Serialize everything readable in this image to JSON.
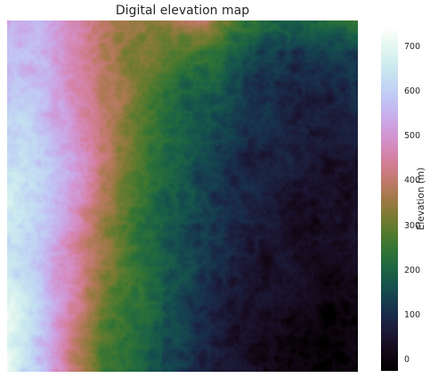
{
  "chart_data": {
    "type": "heatmap",
    "title": "Digital elevation map",
    "colormap": "cubehelix",
    "colorbar": {
      "label": "Elevation (m)",
      "min": -25,
      "max": 745,
      "ticks": [
        0,
        100,
        200,
        300,
        400,
        500,
        600,
        700
      ]
    },
    "value_field": {
      "grid": [
        [
          560,
          540,
          470,
          390,
          330,
          330,
          410,
          300,
          230,
          180,
          200,
          250
        ],
        [
          570,
          550,
          480,
          400,
          330,
          280,
          260,
          200,
          150,
          120,
          110,
          130
        ],
        [
          580,
          560,
          480,
          400,
          320,
          250,
          190,
          150,
          110,
          90,
          80,
          95
        ],
        [
          600,
          580,
          500,
          410,
          310,
          230,
          170,
          130,
          95,
          75,
          65,
          75
        ],
        [
          620,
          590,
          510,
          410,
          300,
          210,
          150,
          110,
          80,
          60,
          55,
          60
        ],
        [
          650,
          600,
          520,
          400,
          280,
          190,
          140,
          100,
          70,
          50,
          40,
          45
        ],
        [
          660,
          600,
          500,
          380,
          260,
          180,
          130,
          90,
          60,
          40,
          30,
          35
        ],
        [
          650,
          580,
          470,
          360,
          250,
          170,
          120,
          80,
          50,
          30,
          20,
          25
        ],
        [
          660,
          590,
          460,
          330,
          240,
          170,
          110,
          70,
          40,
          20,
          10,
          10
        ],
        [
          690,
          600,
          450,
          310,
          230,
          160,
          100,
          60,
          30,
          10,
          0,
          -5
        ],
        [
          700,
          590,
          420,
          290,
          220,
          150,
          90,
          50,
          20,
          0,
          -10,
          -15
        ],
        [
          700,
          570,
          400,
          270,
          210,
          140,
          80,
          40,
          10,
          -5,
          -15,
          -20
        ]
      ]
    }
  }
}
